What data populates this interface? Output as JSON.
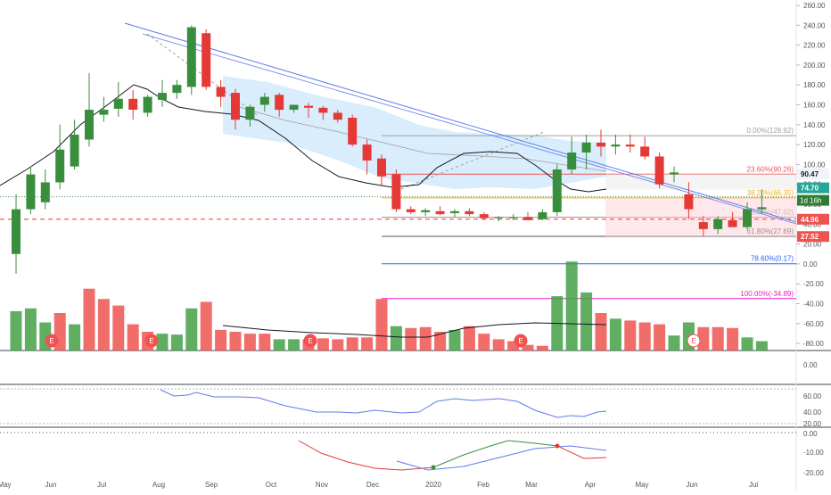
{
  "chart_data": {
    "type": "candlestick",
    "timeframe_badge": "1d 16h",
    "price_axis_ticks": [
      "260.00",
      "240.00",
      "220.00",
      "200.00",
      "180.00",
      "160.00",
      "140.00",
      "120.00",
      "100.00",
      "80.00",
      "60.00",
      "40.00",
      "20.00",
      "0.00",
      "-20.00",
      "-40.00",
      "-60.00",
      "-80.00"
    ],
    "x_axis_labels": [
      "May",
      "Jun",
      "Jul",
      "Aug",
      "Sep",
      "Oct",
      "Nov",
      "Dec",
      "2020",
      "Feb",
      "Mar",
      "Apr",
      "May",
      "Jun",
      "Jul"
    ],
    "x_axis_label_positions": [
      0,
      1,
      2,
      3,
      4,
      5,
      6,
      7,
      8,
      9,
      10,
      11,
      12,
      13,
      14
    ],
    "candles": [
      {
        "o": 10,
        "h": 70,
        "l": -10,
        "c": 55
      },
      {
        "o": 55,
        "h": 98,
        "l": 50,
        "c": 90
      },
      {
        "o": 62,
        "h": 95,
        "l": 55,
        "c": 82
      },
      {
        "o": 82,
        "h": 140,
        "l": 75,
        "c": 115
      },
      {
        "o": 98,
        "h": 145,
        "l": 95,
        "c": 130
      },
      {
        "o": 125,
        "h": 192,
        "l": 118,
        "c": 155
      },
      {
        "o": 150,
        "h": 168,
        "l": 143,
        "c": 155
      },
      {
        "o": 156,
        "h": 183,
        "l": 148,
        "c": 166
      },
      {
        "o": 166,
        "h": 175,
        "l": 145,
        "c": 155
      },
      {
        "o": 152,
        "h": 170,
        "l": 148,
        "c": 168
      },
      {
        "o": 165,
        "h": 185,
        "l": 158,
        "c": 172
      },
      {
        "o": 172,
        "h": 185,
        "l": 166,
        "c": 180
      },
      {
        "o": 178,
        "h": 240,
        "l": 170,
        "c": 238
      },
      {
        "o": 232,
        "h": 236,
        "l": 175,
        "c": 178
      },
      {
        "o": 178,
        "h": 185,
        "l": 158,
        "c": 168
      },
      {
        "o": 172,
        "h": 176,
        "l": 135,
        "c": 145
      },
      {
        "o": 145,
        "h": 160,
        "l": 138,
        "c": 158
      },
      {
        "o": 160,
        "h": 172,
        "l": 153,
        "c": 168
      },
      {
        "o": 170,
        "h": 172,
        "l": 148,
        "c": 155
      },
      {
        "o": 155,
        "h": 160,
        "l": 152,
        "c": 160
      },
      {
        "o": 159,
        "h": 162,
        "l": 147,
        "c": 157
      },
      {
        "o": 157,
        "h": 159,
        "l": 145,
        "c": 152
      },
      {
        "o": 152,
        "h": 155,
        "l": 142,
        "c": 145
      },
      {
        "o": 147,
        "h": 150,
        "l": 118,
        "c": 120
      },
      {
        "o": 120,
        "h": 125,
        "l": 90,
        "c": 104
      },
      {
        "o": 106,
        "h": 110,
        "l": 78,
        "c": 88
      },
      {
        "o": 90,
        "h": 95,
        "l": 52,
        "c": 55
      },
      {
        "o": 55,
        "h": 58,
        "l": 50,
        "c": 52
      },
      {
        "o": 52,
        "h": 56,
        "l": 48,
        "c": 54
      },
      {
        "o": 53,
        "h": 58,
        "l": 49,
        "c": 50
      },
      {
        "o": 51,
        "h": 55,
        "l": 47,
        "c": 53
      },
      {
        "o": 53,
        "h": 56,
        "l": 48,
        "c": 50
      },
      {
        "o": 50,
        "h": 52,
        "l": 44,
        "c": 46
      },
      {
        "o": 46,
        "h": 48,
        "l": 43,
        "c": 47
      },
      {
        "o": 47,
        "h": 50,
        "l": 44,
        "c": 47
      },
      {
        "o": 47,
        "h": 52,
        "l": 44,
        "c": 44
      },
      {
        "o": 45,
        "h": 55,
        "l": 44,
        "c": 52
      },
      {
        "o": 52,
        "h": 100,
        "l": 48,
        "c": 95
      },
      {
        "o": 95,
        "h": 128,
        "l": 90,
        "c": 112
      },
      {
        "o": 112,
        "h": 130,
        "l": 95,
        "c": 122
      },
      {
        "o": 122,
        "h": 135,
        "l": 108,
        "c": 118
      },
      {
        "o": 118,
        "h": 130,
        "l": 110,
        "c": 120
      },
      {
        "o": 120,
        "h": 130,
        "l": 112,
        "c": 118
      },
      {
        "o": 118,
        "h": 128,
        "l": 105,
        "c": 108
      },
      {
        "o": 108,
        "h": 112,
        "l": 76,
        "c": 80
      },
      {
        "o": 90,
        "h": 98,
        "l": 82,
        "c": 92
      },
      {
        "o": 70,
        "h": 82,
        "l": 45,
        "c": 55
      },
      {
        "o": 42,
        "h": 48,
        "l": 28,
        "c": 35
      },
      {
        "o": 35,
        "h": 48,
        "l": 30,
        "c": 45
      },
      {
        "o": 44,
        "h": 52,
        "l": 38,
        "c": 37
      },
      {
        "o": 37,
        "h": 62,
        "l": 35,
        "c": 55
      },
      {
        "o": 55,
        "h": 75,
        "l": 50,
        "c": 57
      }
    ],
    "volume": [
      {
        "v": 0.42,
        "up": true
      },
      {
        "v": 0.45,
        "up": true
      },
      {
        "v": 0.3,
        "up": true
      },
      {
        "v": 0.4,
        "up": false
      },
      {
        "v": 0.28,
        "up": true
      },
      {
        "v": 0.66,
        "up": false
      },
      {
        "v": 0.55,
        "up": false
      },
      {
        "v": 0.48,
        "up": false
      },
      {
        "v": 0.28,
        "up": false
      },
      {
        "v": 0.2,
        "up": false
      },
      {
        "v": 0.18,
        "up": true
      },
      {
        "v": 0.17,
        "up": true
      },
      {
        "v": 0.45,
        "up": true
      },
      {
        "v": 0.52,
        "up": false
      },
      {
        "v": 0.22,
        "up": false
      },
      {
        "v": 0.2,
        "up": false
      },
      {
        "v": 0.18,
        "up": false
      },
      {
        "v": 0.18,
        "up": false
      },
      {
        "v": 0.12,
        "up": true
      },
      {
        "v": 0.12,
        "up": true
      },
      {
        "v": 0.12,
        "up": false
      },
      {
        "v": 0.13,
        "up": false
      },
      {
        "v": 0.12,
        "up": false
      },
      {
        "v": 0.14,
        "up": false
      },
      {
        "v": 0.14,
        "up": false
      },
      {
        "v": 0.55,
        "up": false
      },
      {
        "v": 0.26,
        "up": true
      },
      {
        "v": 0.24,
        "up": false
      },
      {
        "v": 0.25,
        "up": false
      },
      {
        "v": 0.2,
        "up": false
      },
      {
        "v": 0.22,
        "up": true
      },
      {
        "v": 0.26,
        "up": false
      },
      {
        "v": 0.18,
        "up": false
      },
      {
        "v": 0.12,
        "up": false
      },
      {
        "v": 0.1,
        "up": false
      },
      {
        "v": 0.06,
        "up": false
      },
      {
        "v": 0.05,
        "up": false
      },
      {
        "v": 0.58,
        "up": true
      },
      {
        "v": 0.95,
        "up": true
      },
      {
        "v": 0.62,
        "up": true
      },
      {
        "v": 0.4,
        "up": false
      },
      {
        "v": 0.34,
        "up": true
      },
      {
        "v": 0.32,
        "up": false
      },
      {
        "v": 0.3,
        "up": false
      },
      {
        "v": 0.28,
        "up": false
      },
      {
        "v": 0.16,
        "up": true
      },
      {
        "v": 0.3,
        "up": true
      },
      {
        "v": 0.25,
        "up": false
      },
      {
        "v": 0.25,
        "up": false
      },
      {
        "v": 0.24,
        "up": false
      },
      {
        "v": 0.14,
        "up": true
      },
      {
        "v": 0.1,
        "up": true
      }
    ],
    "price_labels": [
      {
        "text": "90.47",
        "value": 90.47,
        "bg": "#f0f3fa",
        "fg": "#131722"
      },
      {
        "text": "74.70",
        "value": 74.7,
        "bg": "#26a69a",
        "fg": "#ffffff",
        "dark": "#2e7d32"
      },
      {
        "text": "44.96",
        "value": 44.96,
        "bg": "#ef5350",
        "fg": "#ffffff"
      },
      {
        "text": "27.52",
        "value": 27.52,
        "bg": "#ef5350",
        "fg": "#ffffff"
      }
    ],
    "fib_levels": [
      {
        "label": "0.00%(128.92)",
        "value": 128.92,
        "color": "#9e9e9e"
      },
      {
        "label": "23.60%(90.26)",
        "value": 90.26,
        "color": "#ef5350"
      },
      {
        "label": "38.20%(66.35)",
        "value": 66.35,
        "color": "#f9a825"
      },
      {
        "label": "50.00%(47.02)",
        "value": 47.02,
        "color": "#9e9e9e"
      },
      {
        "label": "61.80%(27.69)",
        "value": 27.69,
        "color": "#555555"
      },
      {
        "label": "78.60%(0.17)",
        "value": 0.17,
        "color": "#2962ff"
      },
      {
        "label": "100.00%(-34.89)",
        "value": -34.89,
        "color": "#e91ec8"
      }
    ],
    "indicator2_ticks": [
      "0.00"
    ],
    "indicator3_ticks": [
      "60.00",
      "40.00",
      "20.00"
    ],
    "indicator4_ticks": [
      "0.00",
      "-10.00",
      "-20.00"
    ],
    "earnings_marker": "E",
    "colors": {
      "up": "#388e3c",
      "down": "#e53935",
      "trendline": "#5c7de8",
      "band": "#bbdefb"
    }
  }
}
